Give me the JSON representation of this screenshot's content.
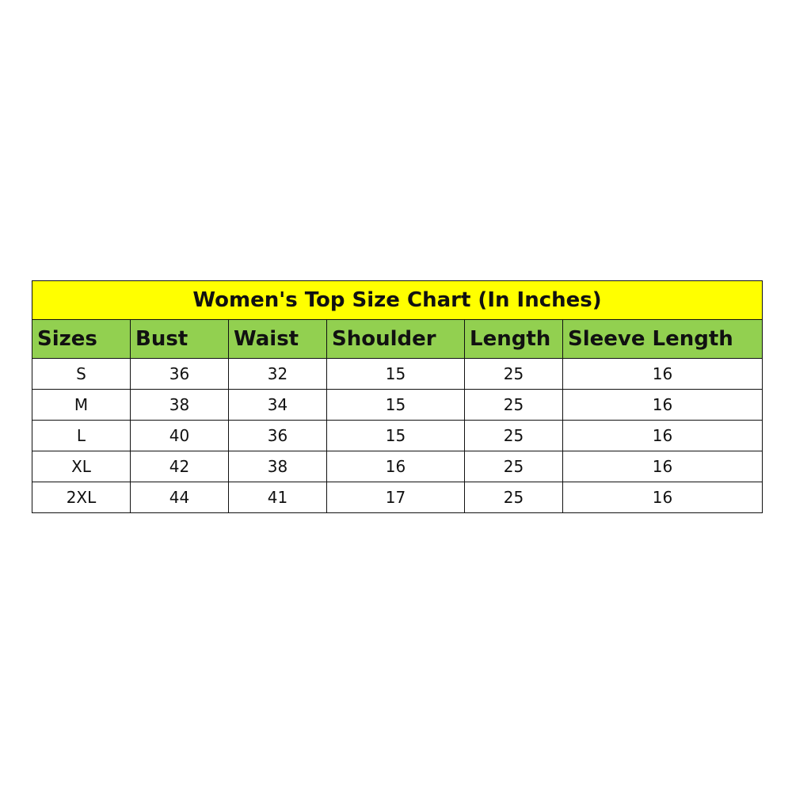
{
  "title": "Women's Top Size Chart (In Inches)",
  "colors": {
    "title_bg": "#ffff00",
    "header_bg": "#92d050",
    "border": "#111111"
  },
  "headers": [
    "Sizes",
    "Bust",
    "Waist",
    "Shoulder",
    "Length",
    "Sleeve Length"
  ],
  "rows": [
    [
      "S",
      "36",
      "32",
      "15",
      "25",
      "16"
    ],
    [
      "M",
      "38",
      "34",
      "15",
      "25",
      "16"
    ],
    [
      "L",
      "40",
      "36",
      "15",
      "25",
      "16"
    ],
    [
      "XL",
      "42",
      "38",
      "16",
      "25",
      "16"
    ],
    [
      "2XL",
      "44",
      "41",
      "17",
      "25",
      "16"
    ]
  ]
}
